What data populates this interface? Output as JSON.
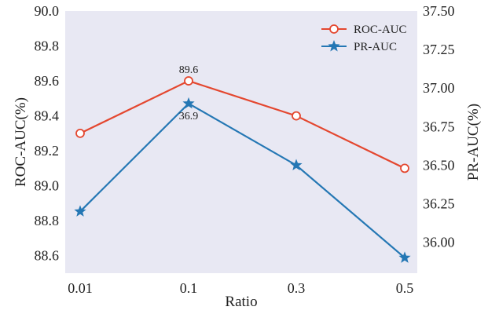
{
  "chart_data": {
    "type": "line",
    "categories": [
      "0.01",
      "0.1",
      "0.3",
      "0.5"
    ],
    "xlabel": "Ratio",
    "ylabel_left": "ROC-AUC(%)",
    "ylabel_right": "PR-AUC(%)",
    "ylim_left": [
      88.5,
      90.0
    ],
    "ylim_right": [
      35.8,
      37.5
    ],
    "yticks_left": [
      "88.6",
      "88.8",
      "89.0",
      "89.2",
      "89.4",
      "89.6",
      "89.8",
      "90.0"
    ],
    "yticks_right": [
      "36.00",
      "36.25",
      "36.50",
      "36.75",
      "37.00",
      "37.25",
      "37.50"
    ],
    "grid": false,
    "legend_position": "top-right",
    "background_color": "#e8e8f3",
    "series": [
      {
        "name": "ROC-AUC",
        "axis": "left",
        "color": "#e4472f",
        "marker": "circle",
        "values": [
          89.3,
          89.6,
          89.4,
          89.1
        ],
        "labels": [
          "",
          "89.6",
          "",
          ""
        ]
      },
      {
        "name": "PR-AUC",
        "axis": "right",
        "color": "#2477b4",
        "marker": "star",
        "values": [
          36.2,
          36.9,
          36.5,
          35.9
        ],
        "labels": [
          "",
          "36.9",
          "",
          ""
        ]
      }
    ]
  }
}
